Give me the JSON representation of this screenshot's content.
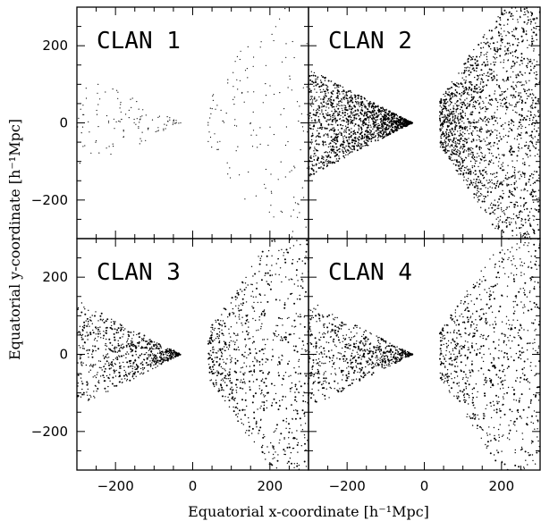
{
  "chart_data": {
    "type": "scatter",
    "layout": "2x2 grid of panels sharing axes",
    "xlabel": "Equatorial x-coordinate [h⁻¹Mpc]",
    "ylabel": "Equatorial y-coordinate [h⁻¹Mpc]",
    "xlim": [
      -300,
      300
    ],
    "ylim": [
      -300,
      300
    ],
    "x_ticks": [
      -200,
      0,
      200
    ],
    "y_ticks": [
      -200,
      0,
      200
    ],
    "x_tick_labels": [
      "−200",
      "0",
      "200"
    ],
    "y_tick_labels": [
      "−200",
      "0",
      "200"
    ],
    "grid": false,
    "point_color": "#000000",
    "note": "Each panel shows two wedge-shaped survey slices (left slice apex near x≈-30, right slice starting near x≈+40); points are galaxy positions, plotted here as a density-matched sample",
    "panels": [
      {
        "title": "CLAN 1",
        "density": "sparse",
        "left_wedge": {
          "apex_x": -30,
          "outer_x": -300,
          "half_height": 140
        },
        "right_wedge": {
          "inner_x": 40,
          "outer_x": 300,
          "half_height": 300
        }
      },
      {
        "title": "CLAN 2",
        "density": "dense",
        "left_wedge": {
          "apex_x": -30,
          "outer_x": -300,
          "half_height": 140
        },
        "right_wedge": {
          "inner_x": 40,
          "outer_x": 300,
          "half_height": 300
        }
      },
      {
        "title": "CLAN 3",
        "density": "medium",
        "left_wedge": {
          "apex_x": -30,
          "outer_x": -300,
          "half_height": 140
        },
        "right_wedge": {
          "inner_x": 40,
          "outer_x": 300,
          "half_height": 300
        }
      },
      {
        "title": "CLAN 4",
        "density": "medium",
        "left_wedge": {
          "apex_x": -30,
          "outer_x": -300,
          "half_height": 140
        },
        "right_wedge": {
          "inner_x": 40,
          "outer_x": 300,
          "half_height": 300
        }
      }
    ]
  }
}
